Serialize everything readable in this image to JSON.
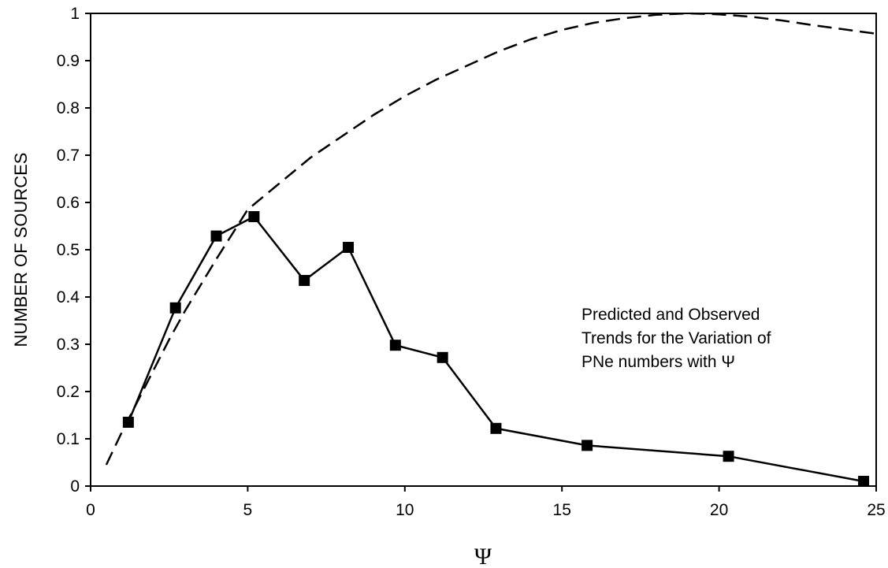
{
  "chart_data": {
    "type": "line",
    "title": "",
    "xlabel": "Ψ",
    "ylabel": "NUMBER OF SOURCES",
    "xlim": [
      0,
      25
    ],
    "ylim": [
      0,
      1
    ],
    "x_ticks": [
      "0",
      "5",
      "10",
      "15",
      "20",
      "25"
    ],
    "y_ticks": [
      "0",
      "0.1",
      "0.2",
      "0.3",
      "0.4",
      "0.5",
      "0.6",
      "0.7",
      "0.8",
      "0.9",
      "1"
    ],
    "grid": false,
    "legend": "none",
    "annotation": [
      "Predicted and Observed",
      "Trends for the Variation of",
      "PNe numbers with Ψ"
    ],
    "series": [
      {
        "style": "solid line with square markers",
        "color": "#000000",
        "x": [
          1.2,
          2.7,
          4.0,
          5.2,
          6.8,
          8.2,
          9.7,
          11.2,
          12.9,
          15.8,
          20.3,
          24.6
        ],
        "y": [
          0.135,
          0.377,
          0.529,
          0.57,
          0.435,
          0.505,
          0.298,
          0.272,
          0.122,
          0.086,
          0.063,
          0.01
        ]
      },
      {
        "style": "dashed line",
        "color": "#000000",
        "x": [
          0.5,
          1.0,
          1.5,
          2.0,
          2.5,
          3.0,
          4.0,
          5.0,
          6.0,
          7.0,
          8.0,
          9.0,
          10.0,
          11.0,
          12.0,
          13.0,
          14.0,
          15.0,
          16.0,
          17.0,
          18.0,
          19.0,
          20.0,
          21.0,
          22.0,
          23.0,
          24.0,
          25.0
        ],
        "y": [
          0.045,
          0.115,
          0.18,
          0.245,
          0.31,
          0.37,
          0.48,
          0.585,
          0.64,
          0.695,
          0.74,
          0.785,
          0.825,
          0.86,
          0.89,
          0.92,
          0.945,
          0.965,
          0.98,
          0.99,
          0.997,
          1.0,
          0.998,
          0.993,
          0.985,
          0.975,
          0.966,
          0.957
        ]
      }
    ]
  }
}
